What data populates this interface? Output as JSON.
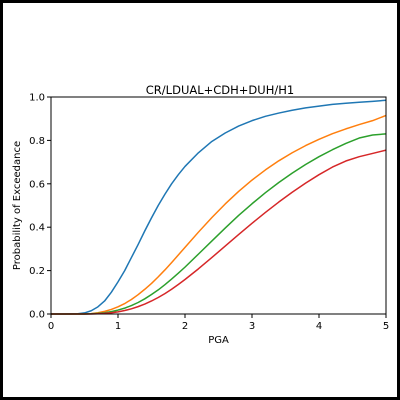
{
  "chart_data": {
    "type": "line",
    "title": "CR/LDUAL+CDH+DUH/H1",
    "xlabel": "PGA",
    "ylabel": "Probability of Exceedance",
    "xlim": [
      0,
      5
    ],
    "ylim": [
      0,
      1
    ],
    "xticks": [
      "0",
      "1",
      "2",
      "3",
      "4",
      "5"
    ],
    "yticks": [
      "0.0",
      "0.2",
      "0.4",
      "0.6",
      "0.8",
      "1.0"
    ],
    "grid": false,
    "legend": "none",
    "x": [
      0,
      0.2,
      0.4,
      0.5,
      0.6,
      0.7,
      0.8,
      0.9,
      1.0,
      1.1,
      1.2,
      1.3,
      1.4,
      1.5,
      1.6,
      1.7,
      1.8,
      1.9,
      2.0,
      2.2,
      2.4,
      2.6,
      2.8,
      3.0,
      3.2,
      3.4,
      3.6,
      3.8,
      4.0,
      4.2,
      4.4,
      4.6,
      4.8,
      5.0
    ],
    "series": [
      {
        "color": "#1f77b4",
        "values": [
          0.0,
          0.0,
          0.001,
          0.005,
          0.015,
          0.033,
          0.06,
          0.1,
          0.148,
          0.2,
          0.26,
          0.32,
          0.383,
          0.443,
          0.5,
          0.552,
          0.6,
          0.642,
          0.68,
          0.743,
          0.795,
          0.834,
          0.866,
          0.891,
          0.911,
          0.926,
          0.939,
          0.95,
          0.958,
          0.966,
          0.971,
          0.976,
          0.98,
          0.985
        ]
      },
      {
        "color": "#ff7f0e",
        "values": [
          0.0,
          0.0,
          0.0,
          0.0,
          0.002,
          0.006,
          0.012,
          0.021,
          0.033,
          0.048,
          0.067,
          0.089,
          0.114,
          0.141,
          0.171,
          0.203,
          0.237,
          0.272,
          0.307,
          0.377,
          0.444,
          0.507,
          0.565,
          0.617,
          0.664,
          0.706,
          0.743,
          0.776,
          0.805,
          0.831,
          0.853,
          0.873,
          0.891,
          0.915
        ]
      },
      {
        "color": "#2ca02c",
        "values": [
          0.0,
          0.0,
          0.0,
          0.0,
          0.001,
          0.003,
          0.006,
          0.011,
          0.018,
          0.027,
          0.039,
          0.053,
          0.07,
          0.09,
          0.111,
          0.135,
          0.161,
          0.188,
          0.216,
          0.276,
          0.336,
          0.396,
          0.454,
          0.508,
          0.559,
          0.606,
          0.649,
          0.689,
          0.725,
          0.757,
          0.786,
          0.811,
          0.825,
          0.83
        ]
      },
      {
        "color": "#d62728",
        "values": [
          0.0,
          0.0,
          0.0,
          0.0,
          0.0,
          0.001,
          0.003,
          0.006,
          0.01,
          0.016,
          0.024,
          0.034,
          0.046,
          0.06,
          0.076,
          0.094,
          0.114,
          0.136,
          0.159,
          0.208,
          0.26,
          0.313,
          0.366,
          0.418,
          0.468,
          0.516,
          0.561,
          0.603,
          0.642,
          0.677,
          0.705,
          0.725,
          0.74,
          0.755
        ]
      }
    ]
  }
}
